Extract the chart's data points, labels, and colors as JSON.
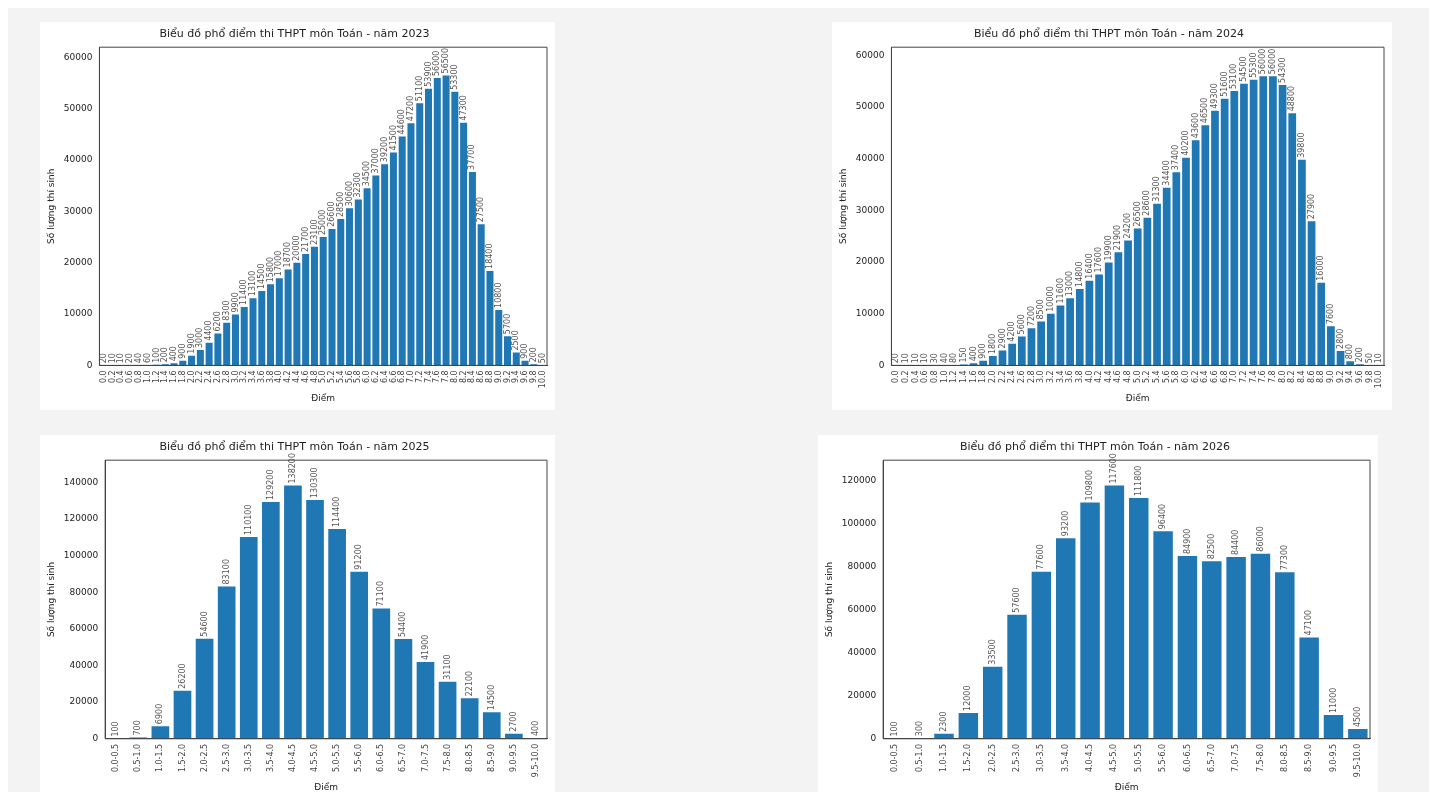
{
  "chart_data": [
    {
      "type": "bar",
      "title": "Biểu đồ phổ điểm thi THPT môn Toán - năm 2023",
      "xlabel": "Điểm",
      "ylabel": "Số lượng thí sinh",
      "categories": [
        "0.0",
        "0.2",
        "0.4",
        "0.6",
        "0.8",
        "1.0",
        "1.2",
        "1.4",
        "1.6",
        "1.8",
        "2.0",
        "2.2",
        "2.4",
        "2.6",
        "2.8",
        "3.0",
        "3.2",
        "3.4",
        "3.6",
        "3.8",
        "4.0",
        "4.2",
        "4.4",
        "4.6",
        "4.8",
        "5.0",
        "5.2",
        "5.4",
        "5.6",
        "5.8",
        "6.0",
        "6.2",
        "6.4",
        "6.6",
        "6.8",
        "7.0",
        "7.2",
        "7.4",
        "7.6",
        "7.8",
        "8.0",
        "8.2",
        "8.4",
        "8.6",
        "8.8",
        "9.0",
        "9.2",
        "9.4",
        "9.6",
        "9.8",
        "10.0"
      ],
      "values": [
        20,
        10,
        10,
        20,
        40,
        60,
        100,
        200,
        400,
        900,
        1900,
        3000,
        4400,
        6200,
        8300,
        9900,
        11400,
        13100,
        14500,
        15800,
        17000,
        18700,
        20000,
        21700,
        23100,
        25000,
        26600,
        28500,
        30600,
        32300,
        34500,
        37000,
        39200,
        41500,
        44600,
        47200,
        51100,
        53900,
        56000,
        56500,
        53300,
        47300,
        37700,
        27500,
        18400,
        10800,
        5700,
        2500,
        900,
        200,
        50
      ],
      "color": "#1f77b4",
      "ylim": [
        0,
        62000
      ],
      "yticks": [
        0,
        10000,
        20000,
        30000,
        40000,
        50000,
        60000
      ],
      "data_labels": true,
      "grid": false,
      "legend": false
    },
    {
      "type": "bar",
      "title": "Biểu đồ phổ điểm thi THPT môn Toán - năm 2024",
      "xlabel": "Điểm",
      "ylabel": "Số lượng thí sinh",
      "categories": [
        "0.0",
        "0.2",
        "0.4",
        "0.6",
        "0.8",
        "1.0",
        "1.2",
        "1.4",
        "1.6",
        "1.8",
        "2.0",
        "2.2",
        "2.4",
        "2.6",
        "2.8",
        "3.0",
        "3.2",
        "3.4",
        "3.6",
        "3.8",
        "4.0",
        "4.2",
        "4.4",
        "4.6",
        "4.8",
        "5.0",
        "5.2",
        "5.4",
        "5.6",
        "5.8",
        "6.0",
        "6.2",
        "6.4",
        "6.6",
        "6.8",
        "7.0",
        "7.2",
        "7.4",
        "7.6",
        "7.8",
        "8.0",
        "8.2",
        "8.4",
        "8.6",
        "8.8",
        "9.0",
        "9.2",
        "9.4",
        "9.6",
        "9.8",
        "10.0"
      ],
      "values": [
        20,
        10,
        10,
        10,
        30,
        40,
        80,
        150,
        400,
        900,
        1800,
        2900,
        4200,
        5600,
        7200,
        8500,
        10000,
        11600,
        13000,
        14800,
        16400,
        17600,
        19900,
        21900,
        24200,
        26500,
        28600,
        31300,
        34400,
        37400,
        40200,
        43600,
        46500,
        49300,
        51600,
        53100,
        54500,
        55300,
        56000,
        56000,
        54300,
        48800,
        39800,
        27900,
        16000,
        7600,
        2800,
        800,
        200,
        50,
        10
      ],
      "color": "#1f77b4",
      "ylim": [
        0,
        61600
      ],
      "yticks": [
        0,
        10000,
        20000,
        30000,
        40000,
        50000,
        60000
      ],
      "data_labels": true,
      "grid": false,
      "legend": false
    },
    {
      "type": "bar",
      "title": "Biểu đồ phổ điểm thi THPT môn Toán - năm 2025",
      "xlabel": "Điểm",
      "ylabel": "Số lượng thí sinh",
      "categories": [
        "0.0-0.5",
        "0.5-1.0",
        "1.0-1.5",
        "1.5-2.0",
        "2.0-2.5",
        "2.5-3.0",
        "3.0-3.5",
        "3.5-4.0",
        "4.0-4.5",
        "4.5-5.0",
        "5.0-5.5",
        "5.5-6.0",
        "6.0-6.5",
        "6.5-7.0",
        "7.0-7.5",
        "7.5-8.0",
        "8.0-8.5",
        "8.5-9.0",
        "9.0-9.5",
        "9.5-10.0"
      ],
      "values": [
        100,
        700,
        6900,
        26200,
        54600,
        83100,
        110100,
        129200,
        138200,
        130300,
        114400,
        91200,
        71100,
        54400,
        41900,
        31100,
        22100,
        14500,
        2700,
        400
      ],
      "color": "#1f77b4",
      "ylim": [
        0,
        152000
      ],
      "yticks": [
        0,
        20000,
        40000,
        60000,
        80000,
        100000,
        120000,
        140000
      ],
      "data_labels": true,
      "grid": false,
      "legend": false
    },
    {
      "type": "bar",
      "title": "Biểu đồ phổ điểm thi THPT môn Toán - năm 2026",
      "xlabel": "Điểm",
      "ylabel": "Số lượng thí sinh",
      "categories": [
        "0.0-0.5",
        "0.5-1.0",
        "1.0-1.5",
        "1.5-2.0",
        "2.0-2.5",
        "2.5-3.0",
        "3.0-3.5",
        "3.5-4.0",
        "4.0-4.5",
        "4.5-5.0",
        "5.0-5.5",
        "5.5-6.0",
        "6.0-6.5",
        "6.5-7.0",
        "7.0-7.5",
        "7.5-8.0",
        "8.0-8.5",
        "8.5-9.0",
        "9.0-9.5",
        "9.5-10.0"
      ],
      "values": [
        100,
        300,
        2300,
        12000,
        33500,
        57600,
        77600,
        93200,
        109800,
        117600,
        111800,
        96400,
        84900,
        82500,
        84400,
        86000,
        77300,
        47100,
        11000,
        4500
      ],
      "color": "#1f77b4",
      "ylim": [
        0,
        129400
      ],
      "yticks": [
        0,
        20000,
        40000,
        60000,
        80000,
        100000,
        120000
      ],
      "data_labels": true,
      "grid": false,
      "legend": false
    }
  ]
}
